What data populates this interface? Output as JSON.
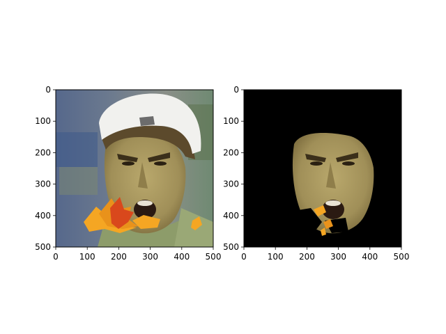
{
  "figure": {
    "background": "#ffffff"
  },
  "chart_data": [
    {
      "type": "image",
      "content": "photo: man in white backwards cap shouting, autumn leaf overlay on lower-left face",
      "xlim": [
        0,
        500
      ],
      "ylim": [
        500,
        0
      ],
      "xticks": [
        "0",
        "100",
        "200",
        "300",
        "400",
        "500"
      ],
      "yticks": [
        "0",
        "100",
        "200",
        "300",
        "400",
        "500"
      ],
      "title": "",
      "xlabel": "",
      "ylabel": "",
      "grid": false
    },
    {
      "type": "image",
      "content": "segmentation mask: face region kept on black background, leaf fragments visible",
      "xlim": [
        0,
        500
      ],
      "ylim": [
        500,
        0
      ],
      "xticks": [
        "0",
        "100",
        "200",
        "300",
        "400",
        "500"
      ],
      "yticks": [
        "0",
        "100",
        "200",
        "300",
        "400",
        "500"
      ],
      "title": "",
      "xlabel": "",
      "ylabel": "",
      "grid": false,
      "mask_background": "#000000"
    }
  ],
  "colors": {
    "skin": "#a99a62",
    "skin_dark": "#7f7040",
    "cap": "#f2f2ef",
    "shirt": "#8f9c6c",
    "bg_blue": "#52668e",
    "leaf_orange": "#f5a623",
    "leaf_red": "#d9481c",
    "mask_bg": "#000000"
  }
}
